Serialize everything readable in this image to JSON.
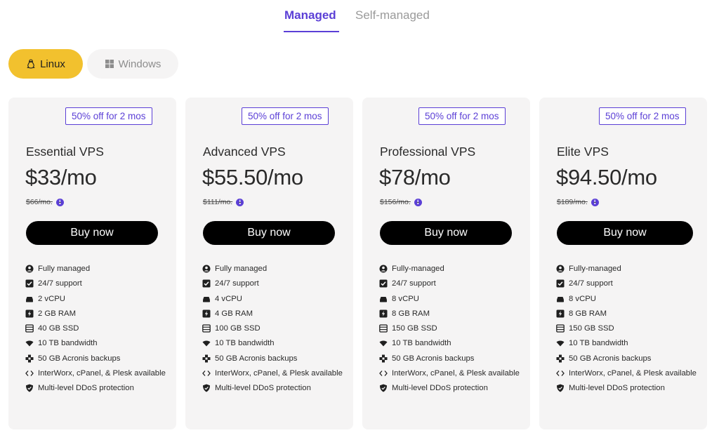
{
  "tabs": {
    "managed": "Managed",
    "self_managed": "Self-managed"
  },
  "os": {
    "linux": "Linux",
    "windows": "Windows"
  },
  "colors": {
    "accent": "#5b3fd6",
    "linux_bg": "#f2c12e",
    "card_bg": "#f5f4f4",
    "buy_bg": "#000000"
  },
  "cards": [
    {
      "badge": "50% off for 2 mos",
      "name": "Essential VPS",
      "price": "$33/mo",
      "original": "$66/mo.",
      "buy": "Buy now",
      "features": [
        {
          "icon": "user-circle-icon",
          "text": "Fully managed"
        },
        {
          "icon": "check-square-icon",
          "text": "24/7 support"
        },
        {
          "icon": "cpu-icon",
          "text": "2 vCPU"
        },
        {
          "icon": "ram-icon",
          "text": "2 GB RAM"
        },
        {
          "icon": "ssd-icon",
          "text": "40 GB SSD"
        },
        {
          "icon": "wifi-icon",
          "text": "10 TB bandwidth"
        },
        {
          "icon": "backup-icon",
          "text": "50 GB Acronis backups"
        },
        {
          "icon": "code-icon",
          "text": "InterWorx, cPanel, & Plesk available"
        },
        {
          "icon": "shield-icon",
          "text": "Multi-level DDoS protection"
        }
      ]
    },
    {
      "badge": "50% off for 2 mos",
      "name": "Advanced VPS",
      "price": "$55.50/mo",
      "original": "$111/mo.",
      "buy": "Buy now",
      "features": [
        {
          "icon": "user-circle-icon",
          "text": "Fully managed"
        },
        {
          "icon": "check-square-icon",
          "text": "24/7 support"
        },
        {
          "icon": "cpu-icon",
          "text": "4 vCPU"
        },
        {
          "icon": "ram-icon",
          "text": "4 GB RAM"
        },
        {
          "icon": "ssd-icon",
          "text": "100 GB SSD"
        },
        {
          "icon": "wifi-icon",
          "text": "10 TB bandwidth"
        },
        {
          "icon": "backup-icon",
          "text": "50 GB Acronis backups"
        },
        {
          "icon": "code-icon",
          "text": "InterWorx, cPanel, & Plesk available"
        },
        {
          "icon": "shield-icon",
          "text": "Multi-level DDoS protection"
        }
      ]
    },
    {
      "badge": "50% off for 2 mos",
      "name": "Professional VPS",
      "price": "$78/mo",
      "original": "$156/mo.",
      "buy": "Buy now",
      "features": [
        {
          "icon": "user-circle-icon",
          "text": "Fully-managed"
        },
        {
          "icon": "check-square-icon",
          "text": "24/7 support"
        },
        {
          "icon": "cpu-icon",
          "text": "8 vCPU"
        },
        {
          "icon": "ram-icon",
          "text": "8 GB RAM"
        },
        {
          "icon": "ssd-icon",
          "text": "150 GB SSD"
        },
        {
          "icon": "wifi-icon",
          "text": "10 TB bandwidth"
        },
        {
          "icon": "backup-icon",
          "text": "50 GB Acronis backups"
        },
        {
          "icon": "code-icon",
          "text": "InterWorx, cPanel, & Plesk available"
        },
        {
          "icon": "shield-icon",
          "text": "Multi-level DDoS protection"
        }
      ]
    },
    {
      "badge": "50% off for 2 mos",
      "name": "Elite VPS",
      "price": "$94.50/mo",
      "original": "$189/mo.",
      "buy": "Buy now",
      "features": [
        {
          "icon": "user-circle-icon",
          "text": "Fully-managed"
        },
        {
          "icon": "check-square-icon",
          "text": "24/7 support"
        },
        {
          "icon": "cpu-icon",
          "text": "8 vCPU"
        },
        {
          "icon": "ram-icon",
          "text": "8 GB RAM"
        },
        {
          "icon": "ssd-icon",
          "text": "150 GB SSD"
        },
        {
          "icon": "wifi-icon",
          "text": "10 TB bandwidth"
        },
        {
          "icon": "backup-icon",
          "text": "50 GB Acronis backups"
        },
        {
          "icon": "code-icon",
          "text": "InterWorx, cPanel, & Plesk available"
        },
        {
          "icon": "shield-icon",
          "text": "Multi-level DDoS protection"
        }
      ]
    }
  ]
}
